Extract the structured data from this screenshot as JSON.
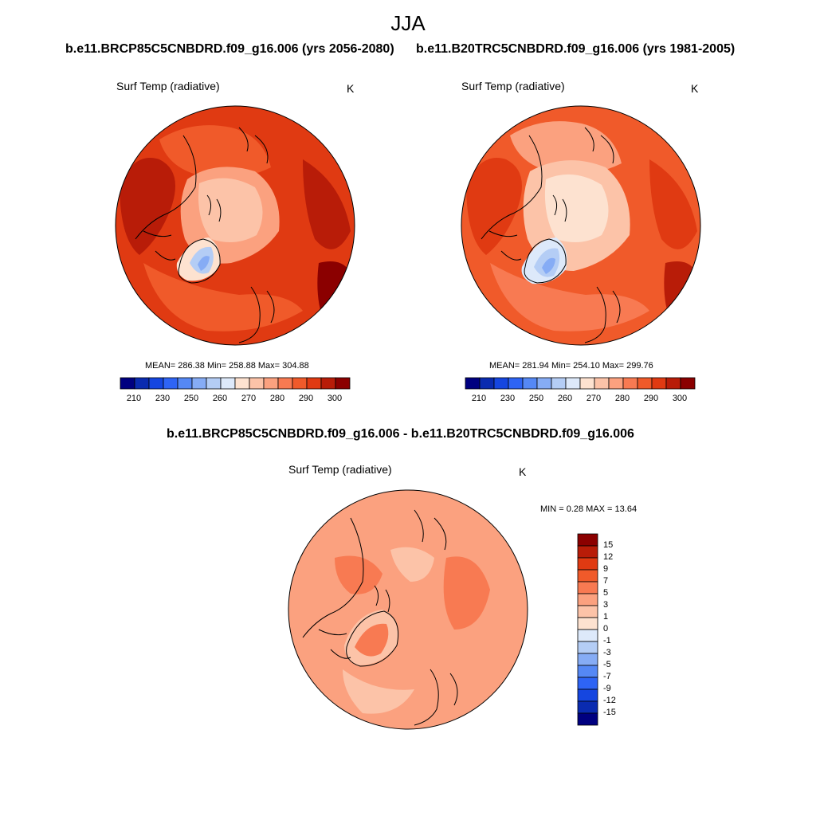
{
  "season": "JJA",
  "variable": "Surf Temp (radiative)",
  "units": "K",
  "panels": [
    {
      "title": "b.e11.BRCP85C5CNBDRD.f09_g16.006 (yrs 2056-2080)",
      "stats": "MEAN= 286.38  Min= 258.88  Max= 304.88",
      "palette": "abs"
    },
    {
      "title": "b.e11.B20TRC5CNBDRD.f09_g16.006 (yrs 1981-2005)",
      "stats": "MEAN= 281.94  Min= 254.10  Max= 299.76",
      "palette": "abs"
    },
    {
      "title": "b.e11.BRCP85C5CNBDRD.f09_g16.006 - b.e11.B20TRC5CNBDRD.f09_g16.006",
      "stats": "MIN =   0.28 MAX =  13.64",
      "palette": "diff"
    }
  ],
  "abs_colorbar": {
    "tick_labels": [
      "210",
      "230",
      "250",
      "260",
      "270",
      "280",
      "290",
      "300"
    ],
    "colors": [
      "#000080",
      "#0a2bb0",
      "#1546e0",
      "#2e64f5",
      "#5588f5",
      "#86acf5",
      "#b4cdf5",
      "#dde9fa",
      "#fde2d0",
      "#fcc3a8",
      "#fba17f",
      "#f87a52",
      "#f05a2a",
      "#e03a12",
      "#b81c08",
      "#8b0000"
    ]
  },
  "diff_colorbar": {
    "labels": [
      "15",
      "12",
      "9",
      "7",
      "5",
      "3",
      "1",
      "0",
      "-1",
      "-3",
      "-5",
      "-7",
      "-9",
      "-12",
      "-15"
    ],
    "colors": [
      "#8b0000",
      "#b81c08",
      "#e03a12",
      "#f05a2a",
      "#f87a52",
      "#fba17f",
      "#fcc3a8",
      "#fde2d0",
      "#dde9fa",
      "#b4cdf5",
      "#86acf5",
      "#5588f5",
      "#2e64f5",
      "#1546e0",
      "#0a2bb0",
      "#000080"
    ]
  }
}
